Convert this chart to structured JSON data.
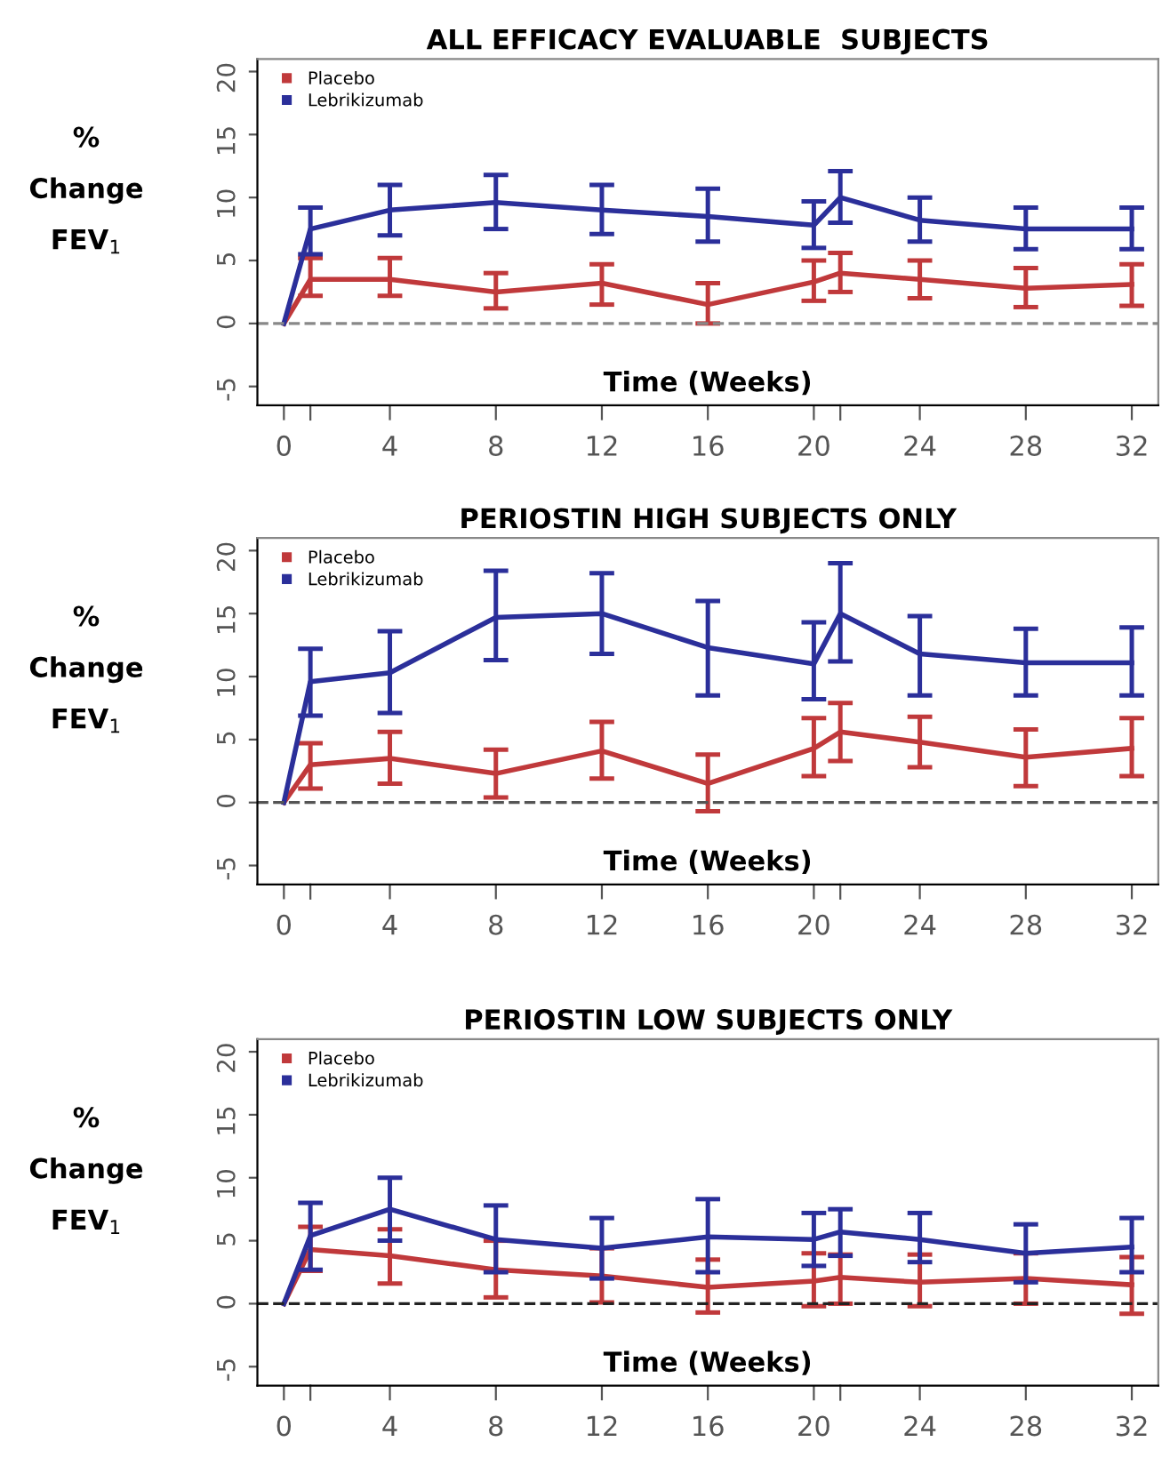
{
  "chart_data": [
    {
      "type": "line",
      "title": "ALL EFFICACY EVALUABLE  SUBJECTS",
      "xlabel": "Time (Weeks)",
      "ylabel": "%\nChange\nFEV$_{1}$",
      "x": [
        0,
        1,
        4,
        8,
        12,
        16,
        20,
        21,
        24,
        28,
        32
      ],
      "series": [
        {
          "name": "Placebo",
          "color": "#c0393b",
          "values": [
            0,
            3.5,
            3.5,
            2.5,
            3.2,
            1.5,
            3.3,
            4.0,
            3.5,
            2.8,
            3.1
          ],
          "errors": [
            null,
            [
              2.2,
              5.2
            ],
            [
              2.2,
              5.2
            ],
            [
              1.2,
              4.0
            ],
            [
              1.5,
              4.7
            ],
            [
              0,
              3.2
            ],
            [
              1.8,
              5.0
            ],
            [
              2.5,
              5.6
            ],
            [
              2.0,
              5.0
            ],
            [
              1.3,
              4.4
            ],
            [
              1.4,
              4.7
            ]
          ]
        },
        {
          "name": "Lebrikizumab",
          "color": "#2b2f9a",
          "values": [
            0,
            7.5,
            9.0,
            9.6,
            9.0,
            8.5,
            7.8,
            10.0,
            8.2,
            7.5,
            7.5
          ],
          "errors": [
            null,
            [
              5.5,
              9.2
            ],
            [
              7.0,
              11.0
            ],
            [
              7.5,
              11.8
            ],
            [
              7.1,
              11.0
            ],
            [
              6.5,
              10.7
            ],
            [
              6.0,
              9.7
            ],
            [
              8.0,
              12.1
            ],
            [
              6.5,
              10.0
            ],
            [
              5.9,
              9.2
            ],
            [
              5.9,
              9.2
            ]
          ]
        }
      ],
      "xlim": [
        -1,
        33
      ],
      "xticks": [
        0,
        4,
        8,
        12,
        16,
        20,
        24,
        28,
        32
      ],
      "ylim": [
        -6.5,
        21
      ],
      "yticks": [
        -5,
        0,
        5,
        10,
        15,
        20
      ],
      "ref_lines": [
        {
          "axis": "y",
          "value": 0,
          "color": "#888888",
          "line_style": "dashed"
        }
      ],
      "legend": "top left",
      "marker": "none",
      "line_style": "solid",
      "grid": false
    },
    {
      "type": "line",
      "title": "PERIOSTIN HIGH SUBJECTS ONLY",
      "xlabel": "Time (Weeks)",
      "ylabel": "%\nChange\nFEV$_{1}$",
      "x": [
        0,
        1,
        4,
        8,
        12,
        16,
        20,
        21,
        24,
        28,
        32
      ],
      "series": [
        {
          "name": "Placebo",
          "color": "#c0393b",
          "values": [
            0,
            3.0,
            3.5,
            2.3,
            4.1,
            1.5,
            4.3,
            5.6,
            4.8,
            3.6,
            4.3
          ],
          "errors": [
            null,
            [
              1.1,
              4.7
            ],
            [
              1.5,
              5.6
            ],
            [
              0.4,
              4.2
            ],
            [
              1.9,
              6.4
            ],
            [
              -0.7,
              3.8
            ],
            [
              2.1,
              6.7
            ],
            [
              3.3,
              7.9
            ],
            [
              2.8,
              6.8
            ],
            [
              1.3,
              5.8
            ],
            [
              2.1,
              6.7
            ]
          ]
        },
        {
          "name": "Lebrikizumab",
          "color": "#2b2f9a",
          "values": [
            0,
            9.6,
            10.3,
            14.7,
            15.0,
            12.3,
            11.0,
            15.0,
            11.8,
            11.1,
            11.1
          ],
          "errors": [
            null,
            [
              6.9,
              12.2
            ],
            [
              7.1,
              13.6
            ],
            [
              11.3,
              18.4
            ],
            [
              11.8,
              18.2
            ],
            [
              8.5,
              16.0
            ],
            [
              8.2,
              14.3
            ],
            [
              11.2,
              19.0
            ],
            [
              8.5,
              14.8
            ],
            [
              8.5,
              13.8
            ],
            [
              8.5,
              13.9
            ]
          ]
        }
      ],
      "xlim": [
        -1,
        33
      ],
      "xticks": [
        0,
        4,
        8,
        12,
        16,
        20,
        24,
        28,
        32
      ],
      "ylim": [
        -6.5,
        21
      ],
      "yticks": [
        -5,
        0,
        5,
        10,
        15,
        20
      ],
      "ref_lines": [
        {
          "axis": "y",
          "value": 0,
          "color": "#555555",
          "line_style": "dashed"
        }
      ],
      "legend": "top left",
      "marker": "none",
      "line_style": "solid",
      "grid": false
    },
    {
      "type": "line",
      "title": "PERIOSTIN LOW SUBJECTS ONLY",
      "xlabel": "Time (Weeks)",
      "ylabel": "%\nChange\nFEV$_{1}$",
      "x": [
        0,
        1,
        4,
        8,
        12,
        16,
        20,
        21,
        24,
        28,
        32
      ],
      "series": [
        {
          "name": "Placebo",
          "color": "#c0393b",
          "values": [
            0,
            4.3,
            3.8,
            2.7,
            2.2,
            1.3,
            1.8,
            2.1,
            1.7,
            2.0,
            1.5
          ],
          "errors": [
            null,
            [
              2.6,
              6.1
            ],
            [
              1.6,
              5.9
            ],
            [
              0.5,
              5.0
            ],
            [
              0.1,
              4.4
            ],
            [
              -0.7,
              3.5
            ],
            [
              -0.2,
              4.0
            ],
            [
              0,
              3.9
            ],
            [
              -0.2,
              3.9
            ],
            [
              0,
              4.0
            ],
            [
              -0.8,
              3.7
            ]
          ]
        },
        {
          "name": "Lebrikizumab",
          "color": "#2b2f9a",
          "values": [
            0,
            5.4,
            7.5,
            5.1,
            4.4,
            5.3,
            5.1,
            5.7,
            5.1,
            4.0,
            4.5
          ],
          "errors": [
            null,
            [
              2.7,
              8.0
            ],
            [
              5.0,
              10.0
            ],
            [
              2.5,
              7.8
            ],
            [
              2.0,
              6.8
            ],
            [
              2.5,
              8.3
            ],
            [
              3.0,
              7.2
            ],
            [
              3.8,
              7.5
            ],
            [
              3.3,
              7.2
            ],
            [
              1.7,
              6.3
            ],
            [
              2.5,
              6.8
            ]
          ]
        }
      ],
      "xlim": [
        -1,
        33
      ],
      "xticks": [
        0,
        4,
        8,
        12,
        16,
        20,
        24,
        28,
        32
      ],
      "ylim": [
        -6.5,
        21
      ],
      "yticks": [
        -5,
        0,
        5,
        10,
        15,
        20
      ],
      "ref_lines": [
        {
          "axis": "y",
          "value": 0,
          "color": "#222222",
          "line_style": "dashed"
        }
      ],
      "legend": "top left",
      "marker": "none",
      "line_style": "solid",
      "grid": false
    }
  ]
}
